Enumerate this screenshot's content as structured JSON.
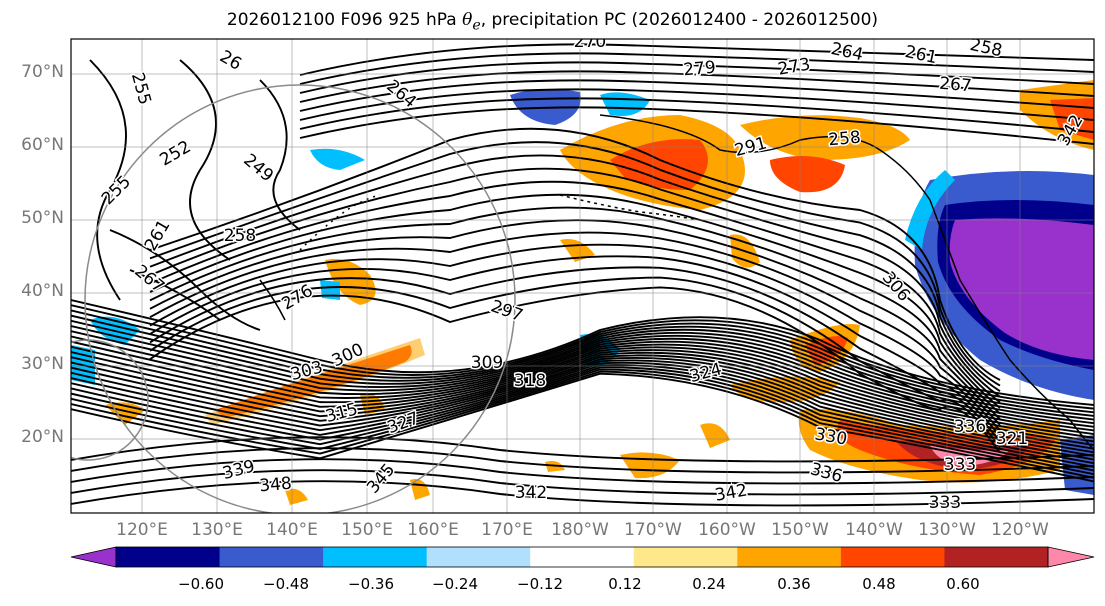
{
  "title": {
    "prefix": "2026012100 F096 925 hPa ",
    "symbol": "θ",
    "subscript": "e",
    "suffix": ", precipitation PC (2026012400 - 2026012500)"
  },
  "map": {
    "lat_labels": [
      "70°N",
      "60°N",
      "50°N",
      "40°N",
      "30°N",
      "20°N"
    ],
    "lon_labels": [
      "120°E",
      "130°E",
      "140°E",
      "150°E",
      "160°E",
      "170°E",
      "180°W",
      "170°W",
      "160°W",
      "150°W",
      "140°W",
      "130°W",
      "120°W"
    ],
    "contour_labels": [
      "270",
      "264",
      "261",
      "258",
      "273",
      "279",
      "267",
      "26",
      "255",
      "264",
      "252",
      "249",
      "255",
      "258",
      "291",
      "258",
      "267",
      "276",
      "297",
      "306",
      "303",
      "300",
      "309",
      "318",
      "324",
      "315",
      "327",
      "330",
      "336",
      "339",
      "348",
      "345",
      "342",
      "342",
      "333",
      "336",
      "321",
      "333",
      "342",
      "261"
    ]
  },
  "colorbar": {
    "ticks": [
      "−0.60",
      "−0.48",
      "−0.36",
      "−0.24",
      "−0.12",
      "0.12",
      "0.24",
      "0.36",
      "0.48",
      "0.60"
    ],
    "colors": [
      "#9932cc",
      "#00008b",
      "#3a5bcd",
      "#00bfff",
      "#b0e0fb",
      "#ffffff",
      "#ffe88a",
      "#ffa500",
      "#ff4500",
      "#b22222",
      "#ff88aa"
    ]
  }
}
